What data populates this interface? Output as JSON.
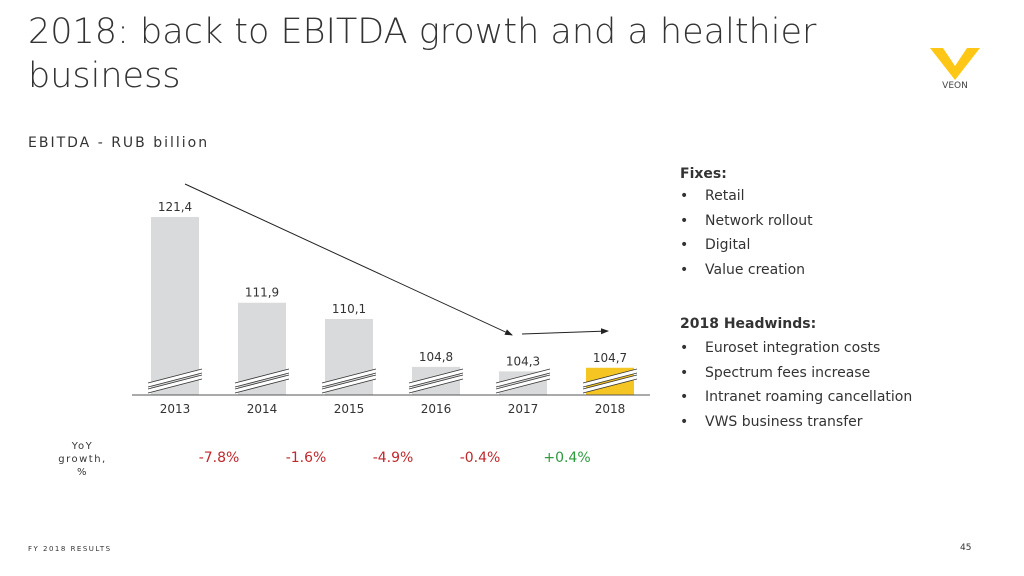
{
  "title": "2018: back to EBITDA growth and a healthier business",
  "subtitle": "EBITDA - RUB billion",
  "logo": {
    "text": "VEON",
    "color": "#FFC715"
  },
  "chart_data": {
    "type": "bar",
    "title": "EBITDA - RUB billion",
    "categories": [
      "2013",
      "2014",
      "2015",
      "2016",
      "2017",
      "2018"
    ],
    "values": [
      121.4,
      111.9,
      110.1,
      104.8,
      104.3,
      104.7
    ],
    "labels": [
      "121,4",
      "111,9",
      "110,1",
      "104,8",
      "104,3",
      "104,7"
    ],
    "colors": [
      "#D9DADB",
      "#D9DADB",
      "#D9DADB",
      "#D9DADB",
      "#D9DADB",
      "#F5C523"
    ],
    "axis_break": true,
    "yoy_label": "YoY growth, %",
    "yoy": [
      "-7.8%",
      "-1.6%",
      "-4.9%",
      "-0.4%",
      "+0.4%"
    ],
    "yoy_colors": [
      "#C0282D",
      "#C0282D",
      "#C0282D",
      "#C0282D",
      "#2E9A3E"
    ]
  },
  "fixes": {
    "heading": "Fixes:",
    "items": [
      "Retail",
      "Network rollout",
      "Digital",
      "Value creation"
    ]
  },
  "headwinds": {
    "heading": "2018 Headwinds:",
    "items": [
      "Euroset integration costs",
      "Spectrum fees increase",
      "Intranet roaming cancellation",
      "VWS business transfer"
    ]
  },
  "footer": "FY 2018 RESULTS",
  "page_number": "45"
}
